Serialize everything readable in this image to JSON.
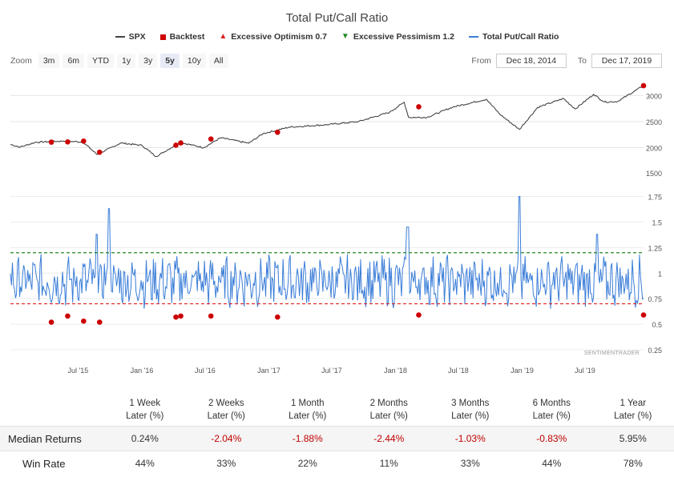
{
  "title": "Total Put/Call Ratio",
  "legend": [
    {
      "label": "SPX",
      "color": "#444444",
      "symbol": "line"
    },
    {
      "label": "Backtest",
      "color": "#cc0000",
      "symbol": "square"
    },
    {
      "label": "Excessive Optimism 0.7",
      "color": "#dd2222",
      "symbol": "triangle-up"
    },
    {
      "label": "Excessive Pessimism 1.2",
      "color": "#228822",
      "symbol": "triangle-down"
    },
    {
      "label": "Total Put/Call Ratio",
      "color": "#3a7dd8",
      "symbol": "line"
    }
  ],
  "zoom": {
    "label": "Zoom",
    "buttons": [
      "3m",
      "6m",
      "YTD",
      "1y",
      "3y",
      "5y",
      "10y",
      "All"
    ],
    "active": "5y"
  },
  "range": {
    "from_label": "From",
    "from": "Dec 18, 2014",
    "to_label": "To",
    "to": "Dec 17, 2019"
  },
  "watermark": "SENTIMENTRADER",
  "chart_data": [
    {
      "type": "line",
      "name": "SPX",
      "x_range": [
        "2014-12-18",
        "2019-12-17"
      ],
      "y_ticks": [
        2000,
        2500,
        3000
      ],
      "y_top_label": "1500",
      "ylim": [
        1500,
        3300
      ],
      "series": [
        {
          "name": "SPX",
          "color": "#444444",
          "points": [
            [
              "2014-12-18",
              2062
            ],
            [
              "2015-01-15",
              2011
            ],
            [
              "2015-03-01",
              2104
            ],
            [
              "2015-05-20",
              2127
            ],
            [
              "2015-07-15",
              2108
            ],
            [
              "2015-08-25",
              1868
            ],
            [
              "2015-11-01",
              2090
            ],
            [
              "2016-01-01",
              2044
            ],
            [
              "2016-02-11",
              1829
            ],
            [
              "2016-04-20",
              2100
            ],
            [
              "2016-06-27",
              2000
            ],
            [
              "2016-08-15",
              2190
            ],
            [
              "2016-11-04",
              2085
            ],
            [
              "2016-12-15",
              2270
            ],
            [
              "2017-03-01",
              2395
            ],
            [
              "2017-06-15",
              2440
            ],
            [
              "2017-09-15",
              2500
            ],
            [
              "2017-12-15",
              2680
            ],
            [
              "2018-01-26",
              2872
            ],
            [
              "2018-02-08",
              2581
            ],
            [
              "2018-04-02",
              2582
            ],
            [
              "2018-06-15",
              2780
            ],
            [
              "2018-09-20",
              2930
            ],
            [
              "2018-10-29",
              2641
            ],
            [
              "2018-12-24",
              2351
            ],
            [
              "2019-02-15",
              2775
            ],
            [
              "2019-04-30",
              2945
            ],
            [
              "2019-06-03",
              2744
            ],
            [
              "2019-07-26",
              3025
            ],
            [
              "2019-08-26",
              2878
            ],
            [
              "2019-10-03",
              2887
            ],
            [
              "2019-12-17",
              3192
            ]
          ]
        }
      ],
      "backtest_points": [
        {
          "x": "2015-04-15",
          "y": 2106
        },
        {
          "x": "2015-06-01",
          "y": 2111
        },
        {
          "x": "2015-07-17",
          "y": 2126
        },
        {
          "x": "2015-09-01",
          "y": 1913
        },
        {
          "x": "2016-04-08",
          "y": 2047
        },
        {
          "x": "2016-04-22",
          "y": 2091
        },
        {
          "x": "2016-07-18",
          "y": 2166
        },
        {
          "x": "2017-01-26",
          "y": 2296
        },
        {
          "x": "2018-03-09",
          "y": 2786
        },
        {
          "x": "2019-12-17",
          "y": 3192
        }
      ]
    },
    {
      "type": "line",
      "name": "Total Put/Call Ratio",
      "x_ticks": [
        "Jul '15",
        "Jan '16",
        "Jul '16",
        "Jan '17",
        "Jul '17",
        "Jan '18",
        "Jul '18",
        "Jan '19",
        "Jul '19"
      ],
      "x_tick_dates": [
        "2015-07-01",
        "2016-01-01",
        "2016-07-01",
        "2017-01-01",
        "2017-07-01",
        "2018-01-01",
        "2018-07-01",
        "2019-01-01",
        "2019-07-01"
      ],
      "y_ticks": [
        "0.25",
        "0.5",
        "0.75",
        "1",
        "1.25",
        "1.5",
        "1.75"
      ],
      "ylim": [
        0.25,
        1.95
      ],
      "thresholds": [
        {
          "name": "Excessive Optimism",
          "value": 0.7,
          "color": "#dd2222"
        },
        {
          "name": "Excessive Pessimism",
          "value": 1.2,
          "color": "#228822"
        }
      ],
      "series_summary": {
        "name": "Total Put/Call Ratio",
        "color": "#3a7dd8",
        "typical_range": [
          0.65,
          1.2
        ],
        "peaks": [
          {
            "x": "2015-09-28",
            "y": 1.63
          },
          {
            "x": "2015-08-24",
            "y": 1.38
          },
          {
            "x": "2018-02-05",
            "y": 1.45
          },
          {
            "x": "2018-12-24",
            "y": 1.75
          },
          {
            "x": "2019-08-05",
            "y": 1.38
          }
        ]
      },
      "backtest_points": [
        {
          "x": "2015-04-15",
          "y": 0.52
        },
        {
          "x": "2015-06-01",
          "y": 0.58
        },
        {
          "x": "2015-07-17",
          "y": 0.53
        },
        {
          "x": "2015-09-01",
          "y": 0.52
        },
        {
          "x": "2016-04-08",
          "y": 0.57
        },
        {
          "x": "2016-04-22",
          "y": 0.58
        },
        {
          "x": "2016-07-18",
          "y": 0.58
        },
        {
          "x": "2017-01-26",
          "y": 0.57
        },
        {
          "x": "2018-03-09",
          "y": 0.59
        },
        {
          "x": "2019-12-17",
          "y": 0.59
        }
      ]
    },
    {
      "type": "table",
      "columns": [
        {
          "line1": "1 Week",
          "line2": "Later (%)"
        },
        {
          "line1": "2 Weeks",
          "line2": "Later (%)"
        },
        {
          "line1": "1 Month",
          "line2": "Later (%)"
        },
        {
          "line1": "2 Months",
          "line2": "Later (%)"
        },
        {
          "line1": "3 Months",
          "line2": "Later (%)"
        },
        {
          "line1": "6 Months",
          "line2": "Later (%)"
        },
        {
          "line1": "1 Year",
          "line2": "Later (%)"
        }
      ],
      "rows": [
        {
          "label": "Median Returns",
          "values": [
            "0.24%",
            "-2.04%",
            "-1.88%",
            "-2.44%",
            "-1.03%",
            "-0.83%",
            "5.95%"
          ]
        },
        {
          "label": "Win Rate",
          "values": [
            "44%",
            "33%",
            "22%",
            "11%",
            "33%",
            "44%",
            "78%"
          ]
        }
      ]
    }
  ]
}
